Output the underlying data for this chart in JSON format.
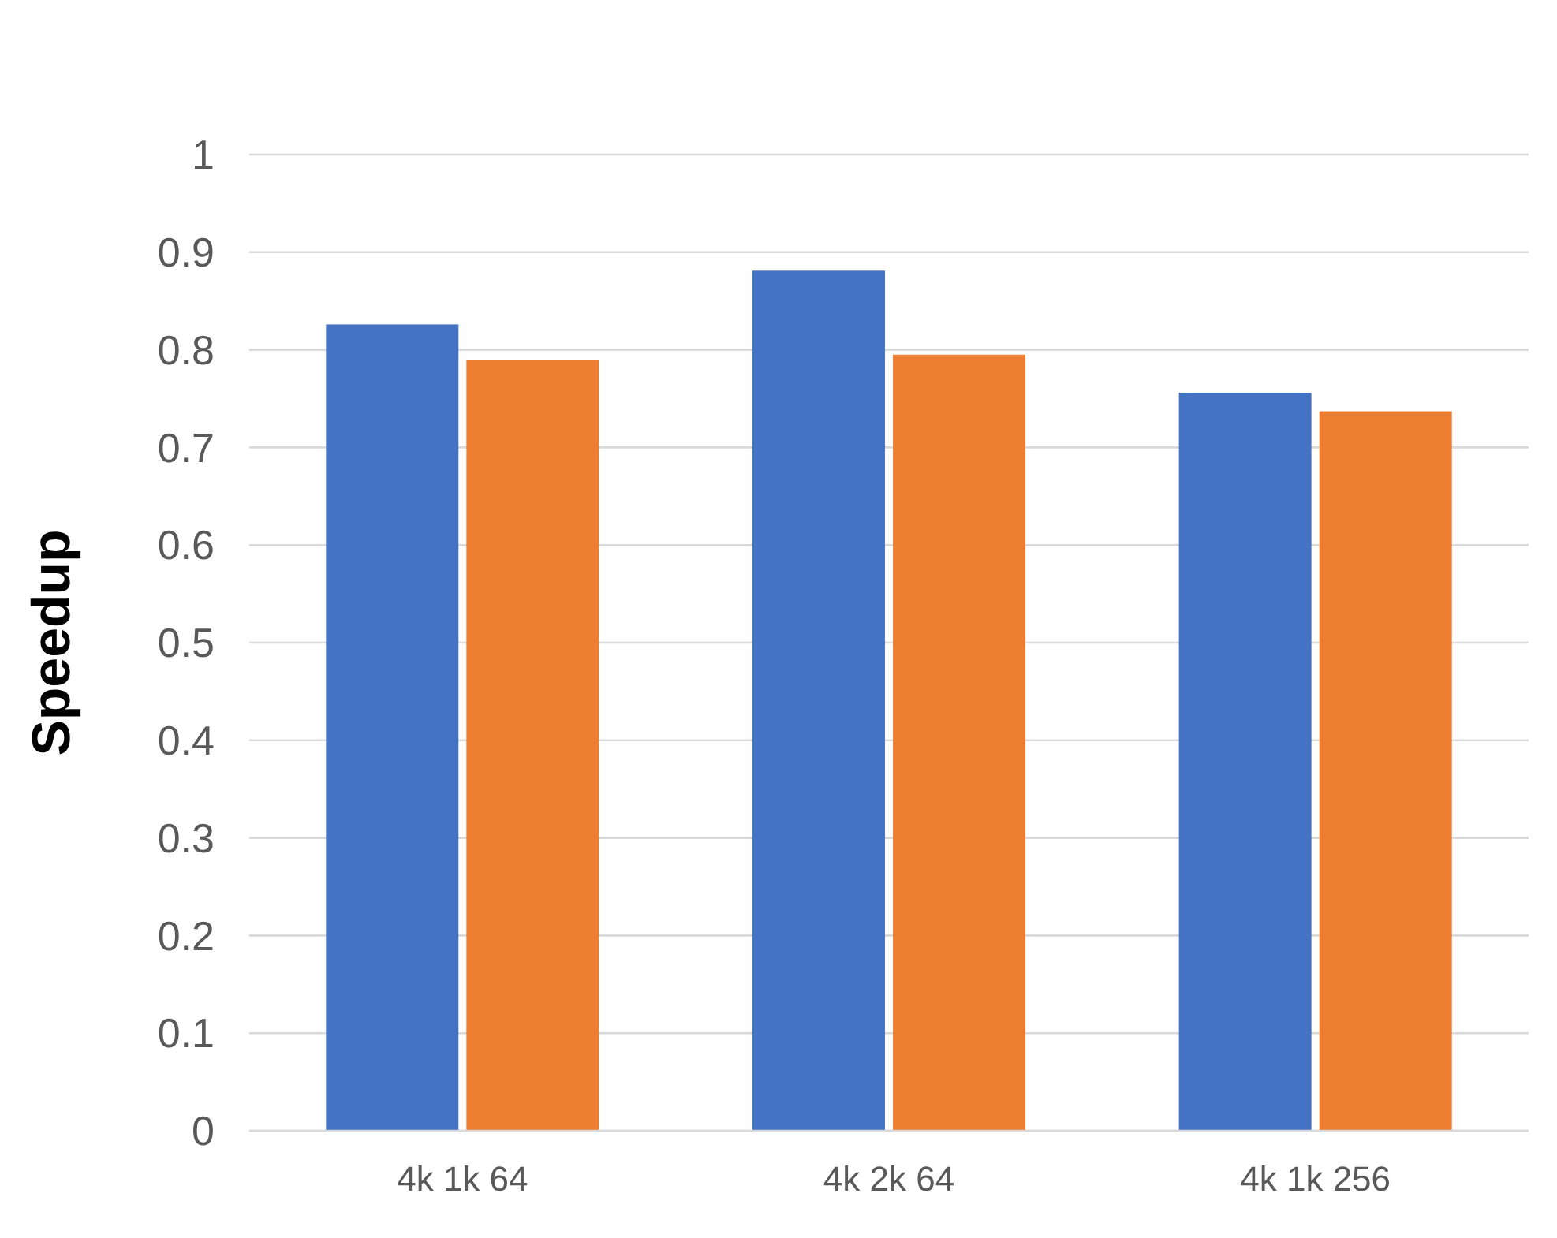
{
  "chart_data": {
    "type": "bar",
    "ylabel": "Speedup",
    "categories": [
      "4k 1k 64",
      "4k 2k 64",
      "4k 1k 256"
    ],
    "series": [
      {
        "color": "#4472c4",
        "values": [
          0.826,
          0.881,
          0.756
        ]
      },
      {
        "color": "#ed7d31",
        "values": [
          0.79,
          0.795,
          0.737
        ]
      }
    ],
    "ylim": [
      0,
      1
    ],
    "yticks": [
      0,
      0.1,
      0.2,
      0.3,
      0.4,
      0.5,
      0.6,
      0.7,
      0.8,
      0.9,
      1
    ],
    "grid": "y"
  }
}
